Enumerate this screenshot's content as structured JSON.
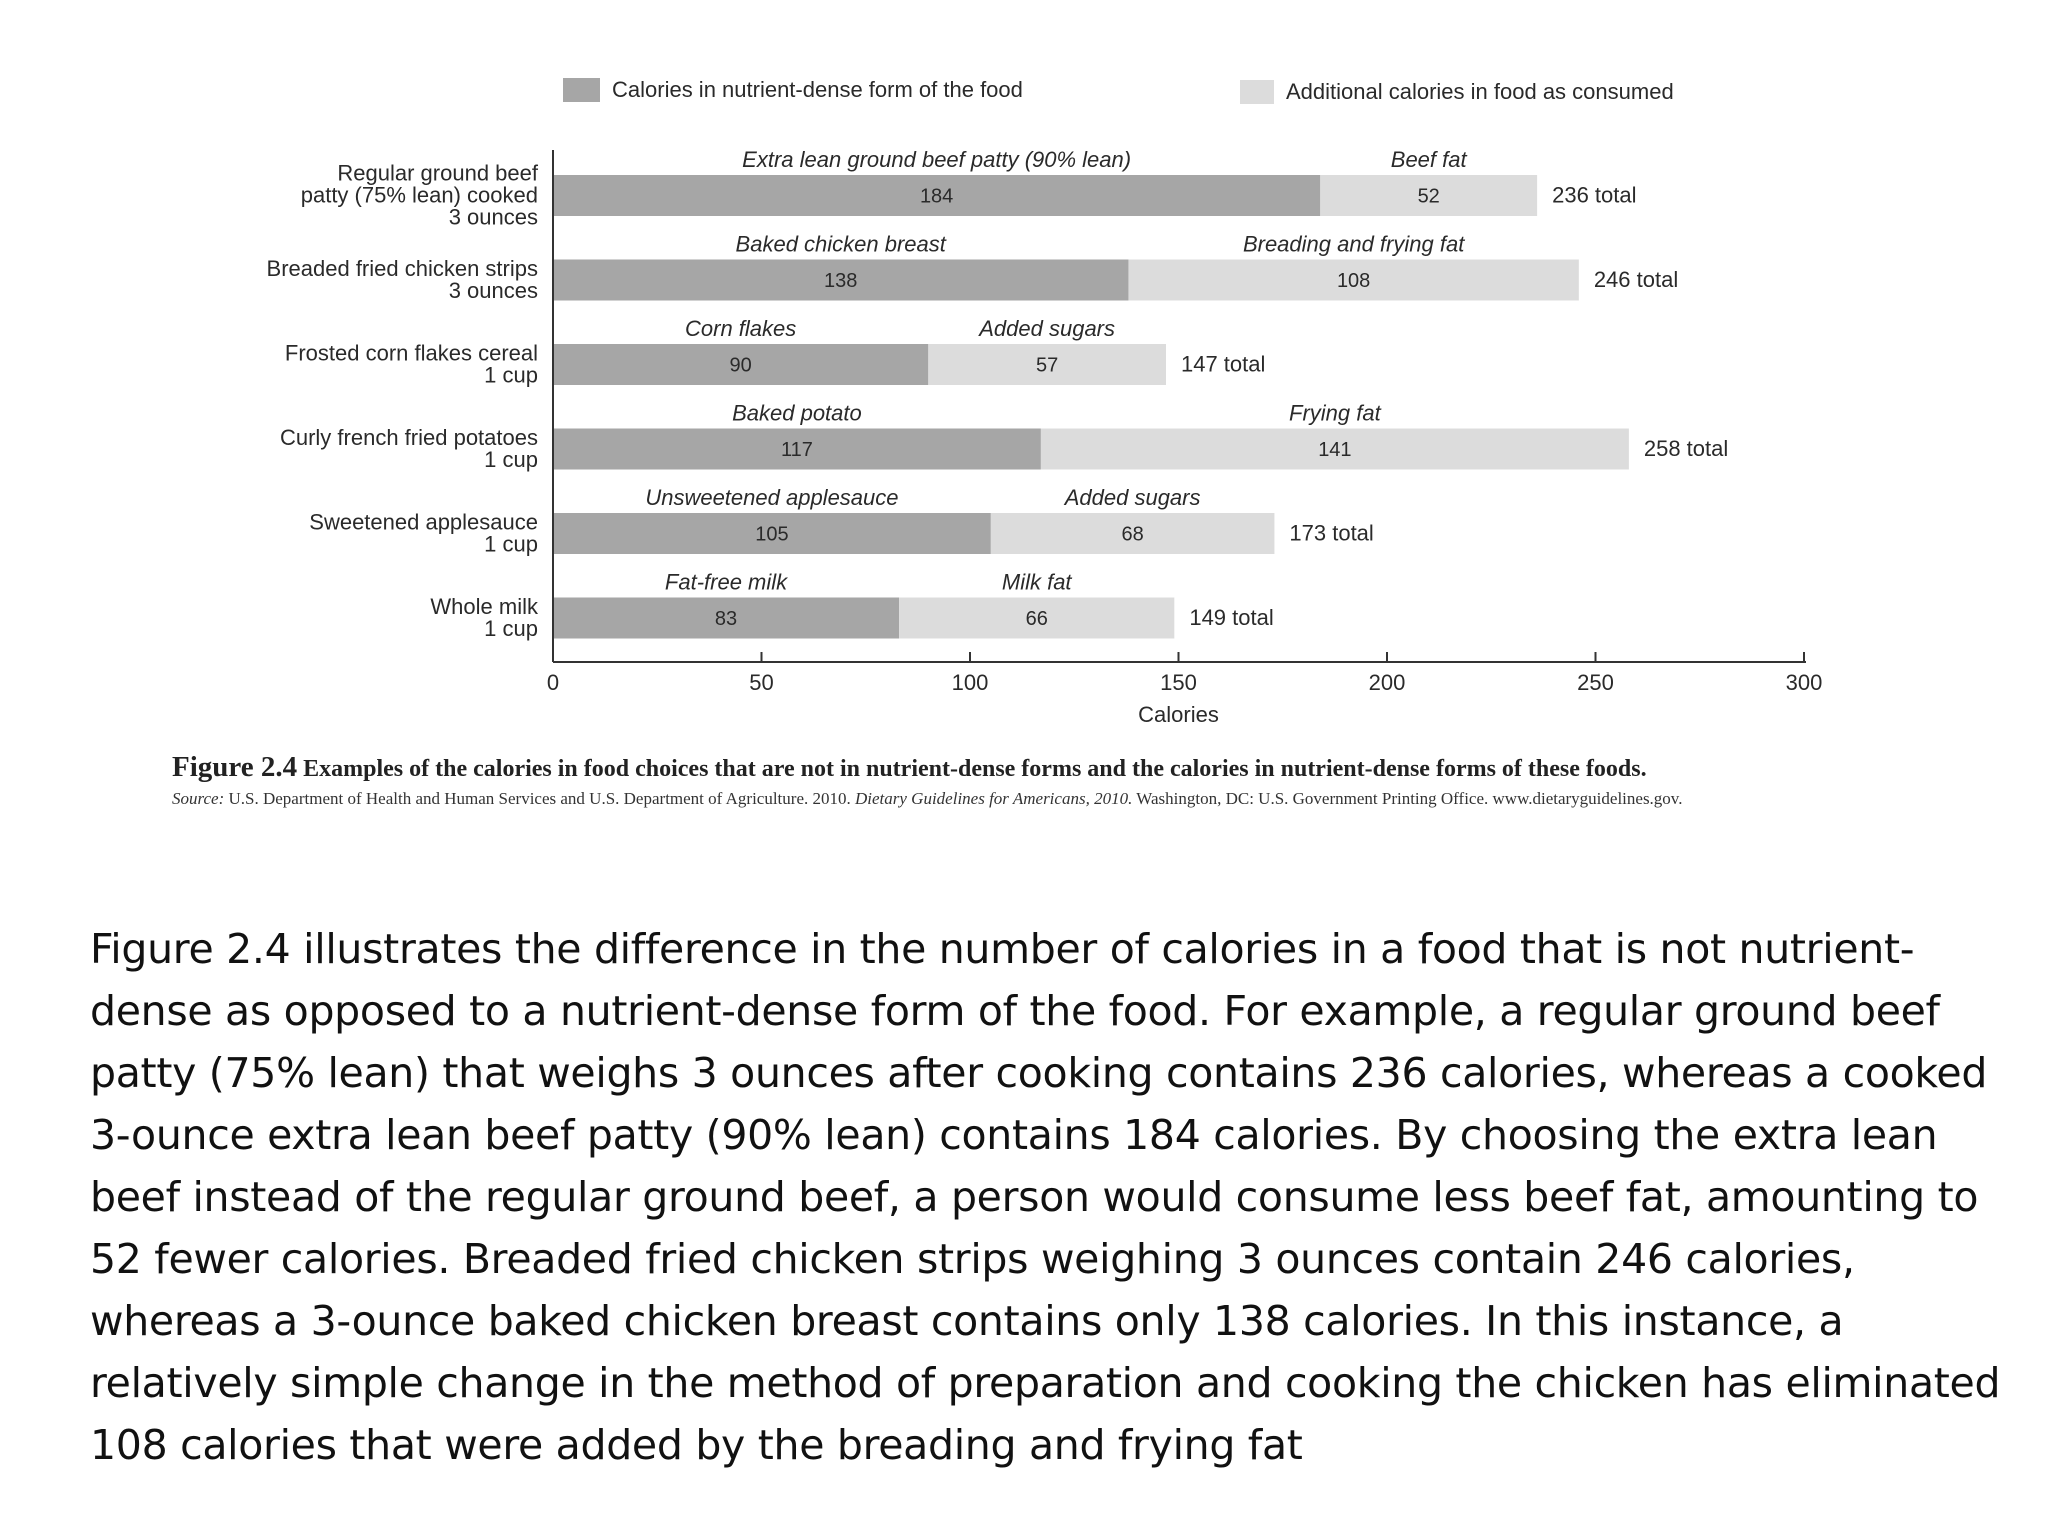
{
  "chart_data": {
    "type": "bar",
    "orientation": "horizontal",
    "stacked": true,
    "legend": {
      "position": "top",
      "entries": [
        {
          "name": "Calories in nutrient-dense form of the food",
          "color": "#a6a6a6"
        },
        {
          "name": "Additional calories in food as consumed",
          "color": "#dcdcdc"
        }
      ]
    },
    "categories": [
      {
        "lines": [
          "Regular ground beef",
          "patty (75% lean) cooked",
          "3 ounces"
        ]
      },
      {
        "lines": [
          "Breaded fried chicken strips",
          "3 ounces"
        ]
      },
      {
        "lines": [
          "Frosted corn flakes cereal",
          "1 cup"
        ]
      },
      {
        "lines": [
          "Curly french fried potatoes",
          "1 cup"
        ]
      },
      {
        "lines": [
          "Sweetened applesauce",
          "1 cup"
        ]
      },
      {
        "lines": [
          "Whole milk",
          "1 cup"
        ]
      }
    ],
    "series": [
      {
        "name": "Calories in nutrient-dense form of the food",
        "values": [
          184,
          138,
          90,
          117,
          105,
          83
        ],
        "segment_names": [
          "Extra lean ground beef patty (90% lean)",
          "Baked chicken breast",
          "Corn flakes",
          "Baked potato",
          "Unsweetened applesauce",
          "Fat-free milk"
        ]
      },
      {
        "name": "Additional calories in food as consumed",
        "values": [
          52,
          108,
          57,
          141,
          68,
          66
        ],
        "segment_names": [
          "Beef fat",
          "Breading and frying fat",
          "Added sugars",
          "Frying fat",
          "Added sugars",
          "Milk fat"
        ]
      }
    ],
    "totals": [
      "236 total",
      "246 total",
      "147 total",
      "258 total",
      "173 total",
      "149 total"
    ],
    "xlabel": "Calories",
    "xlim": [
      0,
      300
    ],
    "xticks": [
      "0",
      "50",
      "100",
      "150",
      "200",
      "250",
      "300"
    ],
    "grid": false
  },
  "caption": {
    "figure_number": "Figure 2.4",
    "title": "Examples of the calories in food choices that are not in nutrient-dense forms and the calories in nutrient-dense forms of these foods.",
    "source_word": "Source:",
    "source_text_1": "U.S. Department of Health and Human Services and U.S. Department of Agriculture. 2010.",
    "source_italic": "Dietary Guidelines for Americans, 2010.",
    "source_text_2": "Washington, DC: U.S. Government Printing Office. www.dietaryguidelines.gov."
  },
  "body_text": "Figure 2.4 illustrates the difference in the number of calories in a food that is not nutrient-dense as opposed to a nutrient-dense form of the food. For example, a regular ground beef patty (75% lean) that weighs 3 ounces after cooking contains 236 calories, whereas a cooked 3-ounce extra lean beef patty (90% lean) contains 184 calories. By choosing the extra lean beef instead of the regular ground beef, a person would consume less beef fat, amounting to 52 fewer calories. Breaded fried chicken strips weighing 3 ounces contain 246 calories, whereas a 3-ounce baked chicken breast contains only 138 calories. In this instance, a relatively simple change in the method of preparation and cooking the chicken has eliminated 108 calories that were added by the breading and frying fat"
}
